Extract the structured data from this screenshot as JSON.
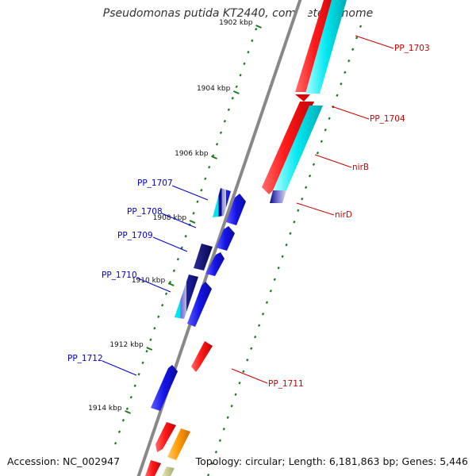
{
  "title": "Pseudomonas putida KT2440, complete genome",
  "accession": "Accession: NC_002947",
  "topology": "Topology: circular; Length: 6,181,863 bp; Genes: 5,446",
  "ticks": [
    "1902 kbp",
    "1904 kbp",
    "1906 kbp",
    "1908 kbp",
    "1910 kbp",
    "1912 kbp",
    "1914 kbp"
  ],
  "forward_genes": [
    {
      "label": "PP_1703",
      "color": "#cc0000"
    },
    {
      "label": "PP_1704",
      "color": "#cc0000"
    },
    {
      "label": "nirB",
      "color": "#cc0000"
    },
    {
      "label": "nirD",
      "color": "#cc0000"
    },
    {
      "label": "PP_1711",
      "color": "#cc0000"
    }
  ],
  "reverse_genes": [
    {
      "label": "PP_1707",
      "color": "#0000cc"
    },
    {
      "label": "PP_1708",
      "color": "#0000cc"
    },
    {
      "label": "PP_1709",
      "color": "#0000cc"
    },
    {
      "label": "PP_1710",
      "color": "#0000cc"
    },
    {
      "label": "PP_1712",
      "color": "#0000cc"
    }
  ],
  "colors": {
    "red": "#ff1a1a",
    "cyan": "#00e5ee",
    "blue": "#1a1aee",
    "navy": "#0a0a6e",
    "orange": "#ff9900",
    "olive": "#c8c88a",
    "backbone": "#888888",
    "tick": "#1a7a1a"
  }
}
